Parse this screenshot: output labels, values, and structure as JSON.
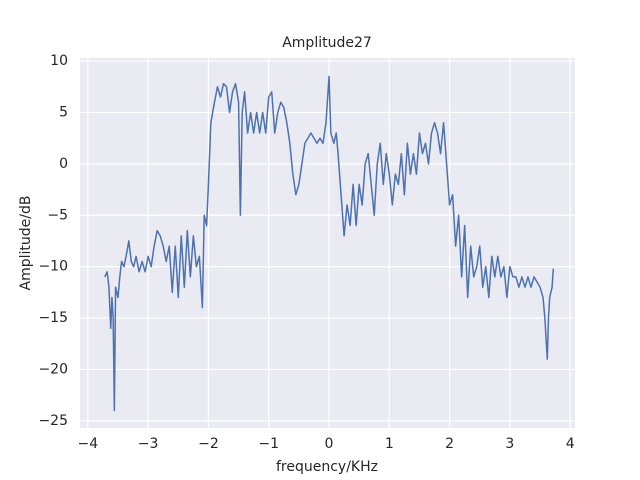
{
  "chart_data": {
    "type": "line",
    "title": "Amplitude27",
    "xlabel": "frequency/KHz",
    "ylabel": "Amplitude/dB",
    "x": [
      -3.72,
      -3.68,
      -3.65,
      -3.62,
      -3.6,
      -3.58,
      -3.56,
      -3.54,
      -3.5,
      -3.47,
      -3.44,
      -3.4,
      -3.35,
      -3.32,
      -3.28,
      -3.24,
      -3.2,
      -3.15,
      -3.1,
      -3.05,
      -3.0,
      -2.95,
      -2.9,
      -2.85,
      -2.8,
      -2.75,
      -2.7,
      -2.65,
      -2.6,
      -2.55,
      -2.5,
      -2.45,
      -2.4,
      -2.35,
      -2.3,
      -2.25,
      -2.2,
      -2.15,
      -2.1,
      -2.07,
      -2.03,
      -2.0,
      -1.96,
      -1.9,
      -1.85,
      -1.8,
      -1.75,
      -1.7,
      -1.65,
      -1.6,
      -1.55,
      -1.5,
      -1.47,
      -1.44,
      -1.4,
      -1.35,
      -1.3,
      -1.25,
      -1.2,
      -1.15,
      -1.1,
      -1.05,
      -1.0,
      -0.95,
      -0.9,
      -0.85,
      -0.8,
      -0.75,
      -0.7,
      -0.65,
      -0.6,
      -0.55,
      -0.5,
      -0.45,
      -0.4,
      -0.35,
      -0.3,
      -0.2,
      -0.15,
      -0.1,
      -0.05,
      0,
      0.03,
      0.08,
      0.12,
      0.15,
      0.2,
      0.25,
      0.3,
      0.35,
      0.4,
      0.45,
      0.5,
      0.55,
      0.6,
      0.65,
      0.7,
      0.75,
      0.8,
      0.85,
      0.9,
      0.95,
      1.0,
      1.05,
      1.1,
      1.15,
      1.2,
      1.25,
      1.3,
      1.35,
      1.4,
      1.45,
      1.5,
      1.55,
      1.6,
      1.65,
      1.7,
      1.75,
      1.8,
      1.85,
      1.9,
      1.95,
      2.0,
      2.05,
      2.1,
      2.15,
      2.2,
      2.25,
      2.3,
      2.35,
      2.4,
      2.45,
      2.5,
      2.55,
      2.6,
      2.65,
      2.7,
      2.75,
      2.8,
      2.85,
      2.9,
      2.95,
      3.0,
      3.05,
      3.1,
      3.15,
      3.2,
      3.25,
      3.3,
      3.35,
      3.4,
      3.45,
      3.5,
      3.55,
      3.58,
      3.6,
      3.62,
      3.64,
      3.66,
      3.7,
      3.72
    ],
    "series": [
      {
        "name": "Amplitude27",
        "color": "#4c72b0",
        "values": [
          -11,
          -10.5,
          -12,
          -16,
          -13,
          -15,
          -24,
          -12,
          -13,
          -11,
          -9.5,
          -10,
          -8.5,
          -7.5,
          -9.5,
          -10,
          -9,
          -10.5,
          -9.5,
          -10.5,
          -9,
          -10,
          -8,
          -6.5,
          -7,
          -8,
          -9.5,
          -8,
          -12.5,
          -8,
          -13,
          -7,
          -12,
          -6.5,
          -11,
          -7,
          -10,
          -9,
          -14,
          -5,
          -6,
          -2,
          4,
          6,
          7.5,
          6.5,
          7.8,
          7.5,
          5,
          7,
          7.8,
          6,
          -5,
          5,
          7,
          3,
          5,
          3,
          5,
          3,
          5,
          3,
          6.5,
          7,
          3,
          5,
          6,
          5.5,
          4,
          2,
          -1,
          -3,
          -2,
          0,
          2,
          2.5,
          3,
          2,
          2.5,
          2,
          4,
          8.5,
          3,
          2,
          3,
          1,
          -3,
          -7,
          -4,
          -6,
          -2,
          -6,
          -2,
          -4,
          0,
          1,
          -2,
          -5,
          0,
          2,
          -2,
          1,
          -1,
          -4,
          -1,
          -2,
          1,
          -3,
          2,
          -1,
          1,
          -1,
          3,
          1,
          2,
          0,
          3,
          4,
          3,
          1,
          4,
          0,
          -4,
          -3,
          -8,
          -5,
          -11,
          -6,
          -13,
          -8,
          -11,
          -10,
          -8,
          -12,
          -10,
          -13,
          -9,
          -11,
          -9,
          -11,
          -10,
          -13,
          -10,
          -11,
          -11,
          -12,
          -11,
          -12,
          -11,
          -12,
          -11,
          -11.5,
          -12,
          -13,
          -15,
          -17,
          -19,
          -15,
          -13,
          -12,
          -10.2
        ]
      }
    ],
    "xlim": [
      -4.13,
      4.08
    ],
    "ylim": [
      -25.7,
      10.3
    ],
    "xticks": [
      {
        "value": -4,
        "label": "−4"
      },
      {
        "value": -3,
        "label": "−3"
      },
      {
        "value": -2,
        "label": "−2"
      },
      {
        "value": -1,
        "label": "−1"
      },
      0,
      1,
      2,
      3,
      4
    ],
    "yticks": [
      {
        "value": -25,
        "label": "−25"
      },
      {
        "value": -20,
        "label": "−20"
      },
      {
        "value": -15,
        "label": "−15"
      },
      {
        "value": -10,
        "label": "−10"
      },
      {
        "value": -5,
        "label": "−5"
      },
      0,
      5,
      10
    ],
    "grid": true
  }
}
